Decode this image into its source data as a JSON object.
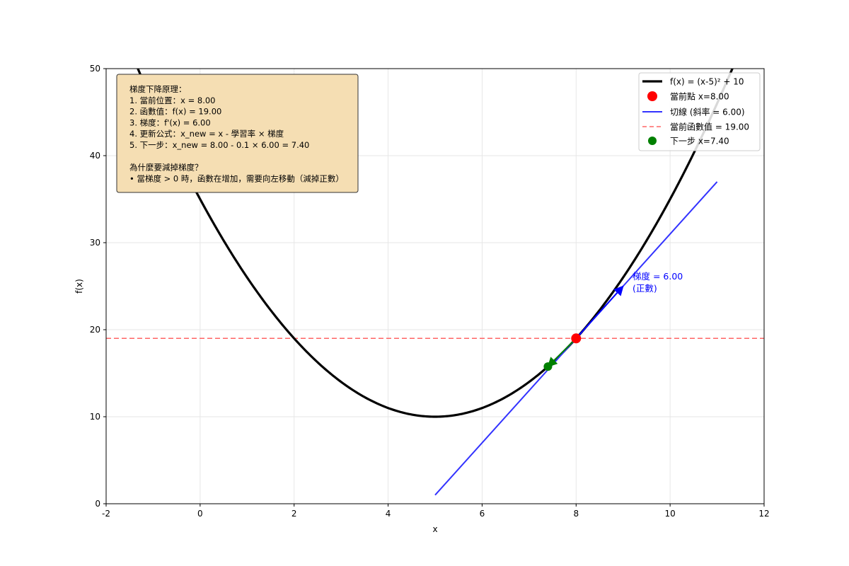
{
  "chart_data": {
    "type": "line",
    "title": "",
    "xlabel": "x",
    "ylabel": "f(x)",
    "xlim": [
      -2,
      12
    ],
    "ylim": [
      0,
      50
    ],
    "xticks": [
      -2,
      0,
      2,
      4,
      6,
      8,
      10,
      12
    ],
    "yticks": [
      0,
      10,
      20,
      30,
      40,
      50
    ],
    "grid": true,
    "legend_position": "top-right",
    "function_label": "f(x) = (x-5)² + 10",
    "function": {
      "vertex_x": 5,
      "vertex_y": 10,
      "x_start": -2,
      "x_end": 12
    },
    "current_point": {
      "label": "當前點 x=8.00",
      "x": 8.0,
      "y": 19.0,
      "color": "#ff0000"
    },
    "tangent": {
      "label": "切線 (斜率 = 6.00)",
      "slope": 6.0,
      "x_start": 5.0,
      "x_end": 11.0,
      "color": "#3333ff"
    },
    "hline": {
      "label": "當前函數值 = 19.00",
      "y": 19.0,
      "color": "#ff6666"
    },
    "next_point": {
      "label": "下一步 x=7.40",
      "x": 7.4,
      "y": 15.76,
      "color": "#008000"
    },
    "gradient_arrow": {
      "from": [
        8.0,
        19.0
      ],
      "to": [
        9.0,
        25.0
      ],
      "color": "#0000ff"
    },
    "step_arrow": {
      "from": [
        8.0,
        19.0
      ],
      "to": [
        7.4,
        15.76
      ],
      "color": "#008000"
    },
    "gradient_annotation": {
      "line1": "梯度 = 6.00",
      "line2": "(正數)",
      "x": 9.2,
      "y": 25.6,
      "color": "#0000ff"
    },
    "info_box": {
      "lines": [
        "梯度下降原理：",
        "1. 當前位置：x = 8.00",
        "2. 函數值：f(x) = 19.00",
        "3. 梯度：f'(x) = 6.00",
        "4. 更新公式：x_new = x - 學習率 × 梯度",
        "5. 下一步：x_new = 8.00 - 0.1 × 6.00 = 7.40",
        "",
        "為什麼要減掉梯度？",
        "• 當梯度 > 0 時，函數在增加，需要向左移動（減掉正數）"
      ],
      "background": "#f5deb3"
    }
  }
}
